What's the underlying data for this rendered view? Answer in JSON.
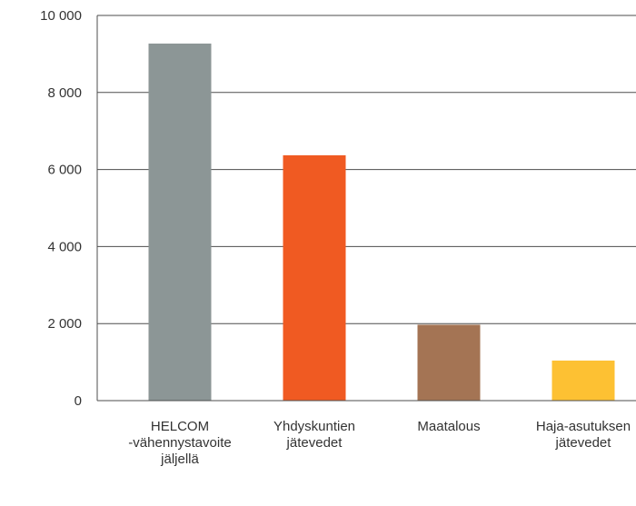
{
  "chart_data": {
    "type": "bar",
    "title": "",
    "xlabel": "",
    "ylabel": "",
    "ylim": [
      0,
      10000
    ],
    "yticks": [
      0,
      2000,
      4000,
      6000,
      8000,
      10000
    ],
    "ytick_labels": [
      "0",
      "2 000",
      "4 000",
      "6 000",
      "8 000",
      "10 000"
    ],
    "grid": true,
    "categories": [
      [
        "HELCOM",
        "-vähennystavoite",
        "jäljellä"
      ],
      [
        "Yhdyskuntien",
        "jätevedet"
      ],
      [
        "Maatalous"
      ],
      [
        "Haja-asutuksen",
        "jätevedet"
      ]
    ],
    "values": [
      9270,
      6370,
      1970,
      1040
    ],
    "colors": [
      "#8c9696",
      "#f05a22",
      "#a47454",
      "#fdc133"
    ]
  }
}
